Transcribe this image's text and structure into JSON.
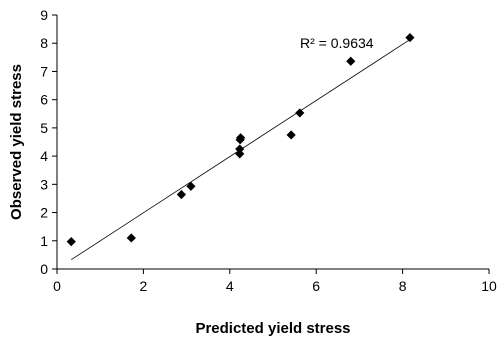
{
  "chart_data": {
    "type": "scatter",
    "xlabel": "Predicted yield stress",
    "ylabel": "Observed yield stress",
    "xlim": [
      0,
      10
    ],
    "ylim": [
      0,
      9
    ],
    "x_ticks": [
      0,
      2,
      4,
      6,
      8,
      10
    ],
    "y_ticks": [
      0,
      1,
      2,
      3,
      4,
      5,
      6,
      7,
      8,
      9
    ],
    "grid": false,
    "marker": "diamond",
    "marker_color": "#000000",
    "points": [
      {
        "x": 0.33,
        "y": 0.97
      },
      {
        "x": 1.72,
        "y": 1.1
      },
      {
        "x": 2.88,
        "y": 2.64
      },
      {
        "x": 3.1,
        "y": 2.93
      },
      {
        "x": 4.23,
        "y": 4.08
      },
      {
        "x": 4.23,
        "y": 4.25
      },
      {
        "x": 4.24,
        "y": 4.58
      },
      {
        "x": 4.25,
        "y": 4.65
      },
      {
        "x": 5.42,
        "y": 4.75
      },
      {
        "x": 5.62,
        "y": 5.53
      },
      {
        "x": 6.8,
        "y": 7.36
      },
      {
        "x": 8.17,
        "y": 8.2
      }
    ],
    "trendline": {
      "x": [
        0.33,
        8.17
      ],
      "y": [
        0.33,
        8.13
      ]
    },
    "annotation": "R² = 0.9634"
  }
}
